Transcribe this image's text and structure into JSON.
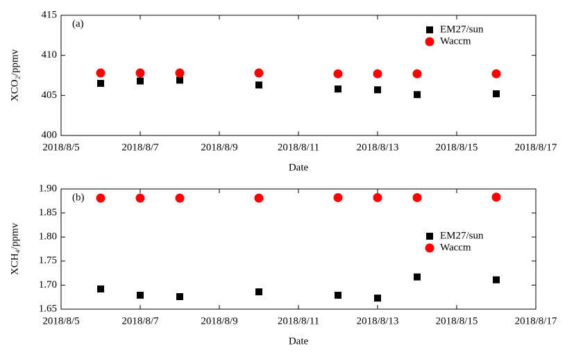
{
  "chart_data": [
    {
      "type": "scatter",
      "panel_label": "(a)",
      "xlabel": "Date",
      "ylabel": "XCO₂/ppmv",
      "x": [
        "2018/8/6",
        "2018/8/7",
        "2018/8/8",
        "2018/8/10",
        "2018/8/12",
        "2018/8/13",
        "2018/8/14",
        "2018/8/16"
      ],
      "series": [
        {
          "name": "EM27/sun",
          "color": "#000000",
          "marker": "square",
          "values": [
            406.5,
            406.8,
            406.9,
            406.3,
            405.8,
            405.7,
            405.1,
            405.2
          ]
        },
        {
          "name": "Waccm",
          "color": "#ff0000",
          "marker": "circle",
          "values": [
            407.8,
            407.8,
            407.8,
            407.8,
            407.7,
            407.7,
            407.7,
            407.7
          ]
        }
      ],
      "xlim": [
        "2018/8/5",
        "2018/8/17"
      ],
      "xticks": [
        "2018/8/5",
        "2018/8/7",
        "2018/8/9",
        "2018/8/11",
        "2018/8/13",
        "2018/8/15",
        "2018/8/17"
      ],
      "ylim": [
        400,
        415
      ],
      "yticks": [
        400,
        405,
        410,
        415
      ],
      "legend": "upper right"
    },
    {
      "type": "scatter",
      "panel_label": "(b)",
      "xlabel": "Date",
      "ylabel": "XCH₄/ppmv",
      "x": [
        "2018/8/6",
        "2018/8/7",
        "2018/8/8",
        "2018/8/10",
        "2018/8/12",
        "2018/8/13",
        "2018/8/14",
        "2018/8/16"
      ],
      "series": [
        {
          "name": "EM27/sun",
          "color": "#000000",
          "marker": "square",
          "values": [
            1.692,
            1.679,
            1.676,
            1.686,
            1.679,
            1.673,
            1.717,
            1.711
          ]
        },
        {
          "name": "Waccm",
          "color": "#ff0000",
          "marker": "circle",
          "values": [
            1.881,
            1.881,
            1.881,
            1.881,
            1.882,
            1.882,
            1.882,
            1.883
          ]
        }
      ],
      "xlim": [
        "2018/8/5",
        "2018/8/17"
      ],
      "xticks": [
        "2018/8/5",
        "2018/8/7",
        "2018/8/9",
        "2018/8/11",
        "2018/8/13",
        "2018/8/15",
        "2018/8/17"
      ],
      "ylim": [
        1.65,
        1.9
      ],
      "yticks": [
        1.65,
        {
          "value": 1.7,
          "label": "1.70"
        },
        1.75,
        {
          "value": 1.8,
          "label": "1.80"
        },
        1.85,
        {
          "value": 1.9,
          "label": "1.90"
        }
      ],
      "legend": "center right"
    }
  ]
}
